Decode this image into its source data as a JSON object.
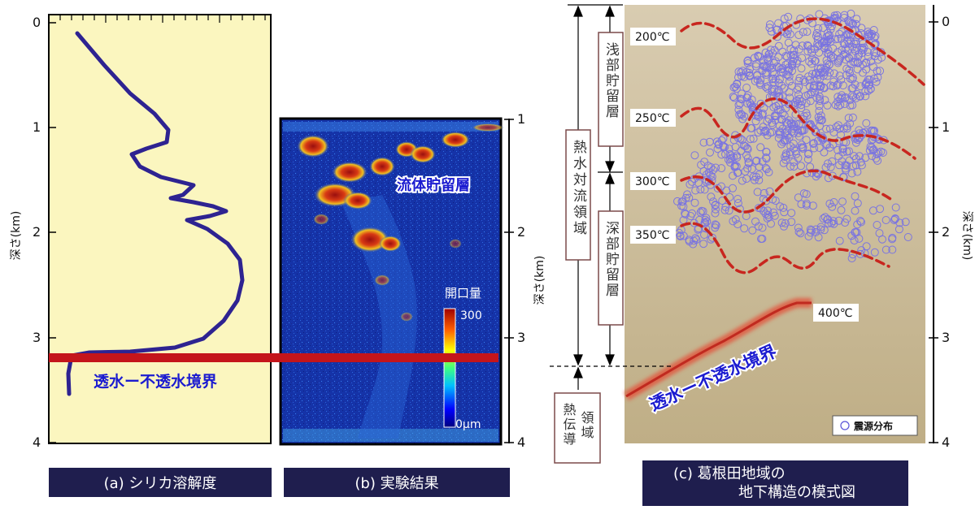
{
  "panel_a": {
    "caption": "(a) シリカ溶解度",
    "y_axis_label": "深さ(km)",
    "y_ticks": [
      "0",
      "1",
      "2",
      "3",
      "4"
    ],
    "boundary_label": "透水ー不透水境界",
    "colors": {
      "background": "#fbf6bf",
      "curve": "#2e2391",
      "boundary": "#c4151b",
      "label": "#1b1bd0"
    }
  },
  "panel_b": {
    "caption": "(b) 実験結果",
    "reservoir_label": "流体貯留層",
    "colorbar_title": "開口量",
    "colorbar_max": "300",
    "colorbar_min": "0μm",
    "y_axis_label": "深さ(km)",
    "y_ticks": [
      "1",
      "2",
      "3",
      "4"
    ]
  },
  "panel_c": {
    "caption_line1": "(c) 葛根田地域の",
    "caption_line2": "地下構造の模式図",
    "zone_convection": "熱水対流領域",
    "zone_shallow": "浅部貯留層",
    "zone_deep": "深部貯留層",
    "zone_conduction": "熱伝導領域",
    "isotherms": [
      "200℃",
      "250℃",
      "300℃",
      "350℃",
      "400℃"
    ],
    "boundary_label": "透水ー不透水境界",
    "legend_label": "震源分布",
    "y_axis_label": "深さ(km)",
    "y_ticks": [
      "0",
      "1",
      "2",
      "3",
      "4"
    ],
    "colors": {
      "isotherm": "#c8261f",
      "hypocenter": "#7a74e0",
      "boundary": "#c02a1f",
      "label": "#1b1bd0"
    }
  }
}
